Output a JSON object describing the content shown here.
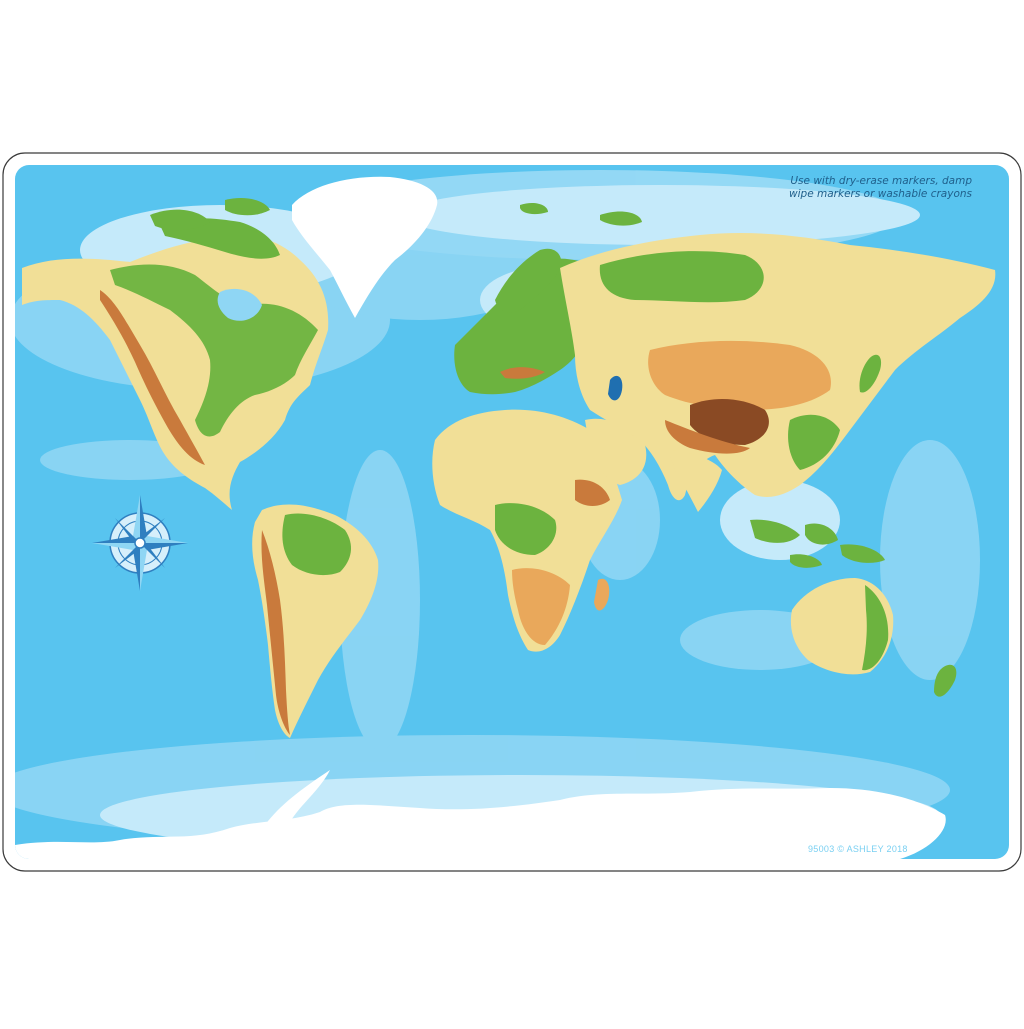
{
  "notice": {
    "line1": "Use with dry-erase markers, damp",
    "line2": "wipe markers or washable crayons"
  },
  "copyright": "95003 © ASHLEY 2018",
  "compass": {
    "icon": "compass-rose-icon"
  },
  "colors": {
    "border": "#3a3a3a",
    "ocean_deep": "#4fc2ef",
    "ocean_mid": "#8fd6f4",
    "ocean_shallow": "#c5eafa",
    "lowland": "#6cb33f",
    "plain": "#f1df97",
    "upland": "#e9a85b",
    "mountain": "#c97a3c",
    "high_mountain": "#8a4a24",
    "ice": "#ffffff",
    "notice_text": "#1f5f8b",
    "copyright_text": "#7ad0f2"
  }
}
